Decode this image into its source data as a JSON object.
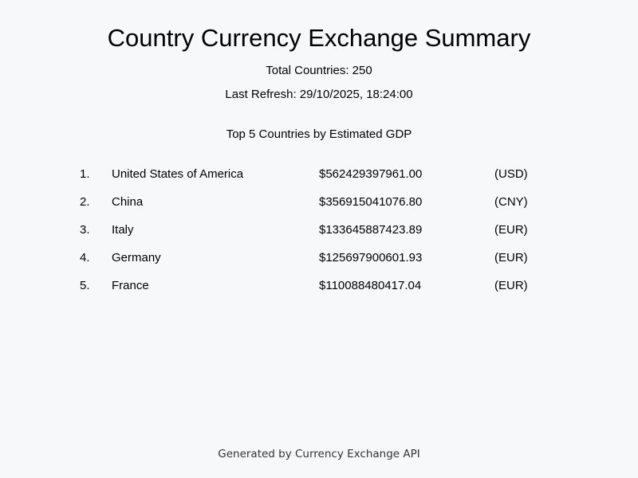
{
  "header": {
    "title": "Country Currency Exchange Summary",
    "total_countries": "Total Countries: 250",
    "last_refresh": "Last Refresh: 29/10/2025, 18:24:00"
  },
  "ranking": {
    "heading": "Top 5 Countries by Estimated GDP",
    "rows": [
      {
        "rank": "1.",
        "country": "United States of America",
        "gdp": "$562429397961.00",
        "currency": "(USD)"
      },
      {
        "rank": "2.",
        "country": "China",
        "gdp": "$356915041076.80",
        "currency": "(CNY)"
      },
      {
        "rank": "3.",
        "country": "Italy",
        "gdp": "$133645887423.89",
        "currency": "(EUR)"
      },
      {
        "rank": "4.",
        "country": "Germany",
        "gdp": "$125697900601.93",
        "currency": "(EUR)"
      },
      {
        "rank": "5.",
        "country": "France",
        "gdp": "$110088480417.04",
        "currency": "(EUR)"
      }
    ]
  },
  "footer": {
    "text": "Generated by Currency Exchange API"
  }
}
